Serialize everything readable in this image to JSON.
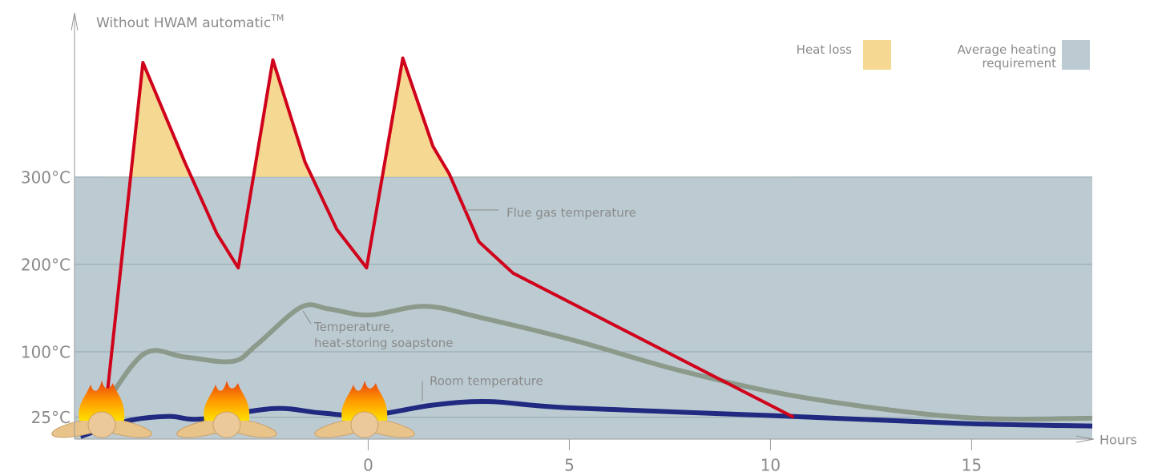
{
  "chart_data": {
    "type": "line",
    "title": "Without HWAM automatic",
    "title_mark": "TM",
    "xlabel": "Hours",
    "xlim": [
      -7.3,
      18
    ],
    "ylim": [
      0,
      475
    ],
    "xticks": [
      0,
      5,
      10,
      15
    ],
    "yticks": [
      {
        "value": 25,
        "label": "25°C"
      },
      {
        "value": 100,
        "label": "100°C"
      },
      {
        "value": 200,
        "label": "200°C"
      },
      {
        "value": 300,
        "label": "300°C"
      }
    ],
    "grid": true,
    "areas": [
      {
        "name": "Heat loss",
        "color": "#f5d992",
        "above": 300
      },
      {
        "name": "Average heating requirement",
        "color": "#bccbd2",
        "from": 0,
        "to": 300
      }
    ],
    "series": [
      {
        "name": "Flue gas temperature",
        "color": "#d0021b",
        "smooth": false,
        "x": [
          -6.55,
          -5.6,
          -4.56,
          -3.76,
          -3.23,
          -2.37,
          -1.57,
          -0.78,
          -0.04,
          0.86,
          1.61,
          2.01,
          2.75,
          3.6,
          10.58
        ],
        "values": [
          25,
          431,
          317,
          235,
          196,
          434,
          317,
          240,
          196,
          436,
          335,
          304,
          226,
          190,
          25
        ]
      },
      {
        "name": "Temperature, heat-storing soapstone",
        "color": "#8c9a8b",
        "smooth": true,
        "x": [
          -6.55,
          -5.56,
          -4.56,
          -3.37,
          -2.77,
          -1.67,
          -0.98,
          0.02,
          1.41,
          2.81,
          5.2,
          7.79,
          10.78,
          14.76,
          18
        ],
        "values": [
          39,
          98,
          94,
          89,
          108,
          151,
          149,
          142,
          152,
          139,
          112,
          78,
          48,
          25,
          24
        ]
      },
      {
        "name": "Room temperature",
        "color": "#1f2a80",
        "smooth": true,
        "x": [
          -7.15,
          -5.96,
          -4.96,
          -4.16,
          -2.37,
          -1.18,
          0.02,
          1.61,
          3.01,
          4.92,
          9.98,
          14.76,
          18
        ],
        "values": [
          3,
          21,
          26,
          23,
          35,
          30,
          27,
          39,
          43,
          36,
          27,
          18,
          15
        ]
      }
    ]
  }
}
